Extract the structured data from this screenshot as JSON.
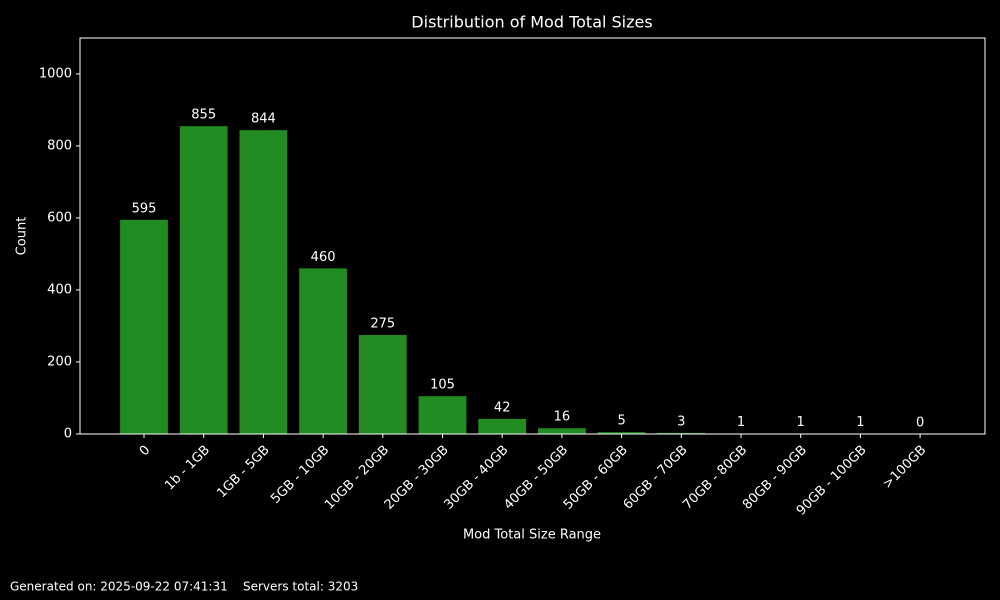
{
  "chart_data": {
    "type": "bar",
    "title": "Distribution of Mod Total Sizes",
    "xlabel": "Mod Total Size Range",
    "ylabel": "Count",
    "categories": [
      "0",
      "1b - 1GB",
      "1GB - 5GB",
      "5GB - 10GB",
      "10GB - 20GB",
      "20GB - 30GB",
      "30GB - 40GB",
      "40GB - 50GB",
      "50GB - 60GB",
      "60GB - 70GB",
      "70GB - 80GB",
      "80GB - 90GB",
      "90GB - 100GB",
      ">100GB"
    ],
    "values": [
      595,
      855,
      844,
      460,
      275,
      105,
      42,
      16,
      5,
      3,
      1,
      1,
      1,
      0
    ],
    "color": "#228b22",
    "ylim": [
      0,
      1100
    ],
    "yticks": [
      0,
      200,
      400,
      600,
      800,
      1000
    ],
    "grid": false,
    "footer": "Generated on: 2025-09-22 07:41:31    Servers total: 3203"
  }
}
